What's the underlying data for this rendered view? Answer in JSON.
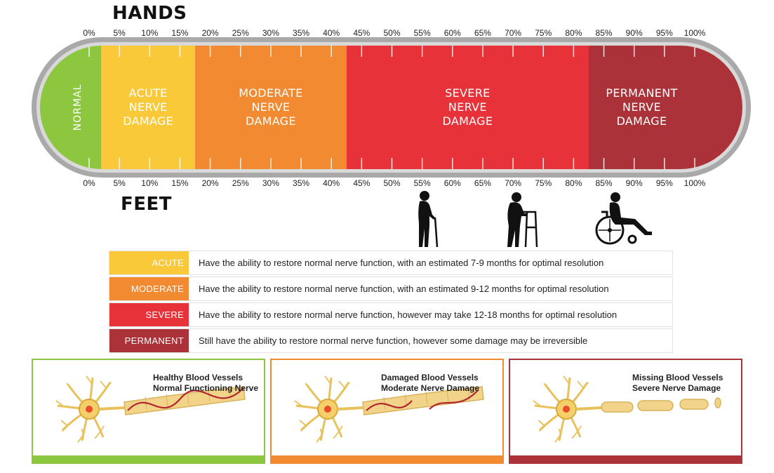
{
  "headings": {
    "hands": "HANDS",
    "feet": "FEET"
  },
  "scale": {
    "ticks": [
      0,
      5,
      10,
      15,
      20,
      25,
      30,
      35,
      40,
      45,
      50,
      55,
      60,
      65,
      70,
      75,
      80,
      85,
      90,
      95,
      100
    ],
    "tick_labels": [
      "0%",
      "5%",
      "10%",
      "15%",
      "20%",
      "25%",
      "30%",
      "35%",
      "40%",
      "45%",
      "50%",
      "55%",
      "60%",
      "65%",
      "70%",
      "75%",
      "80%",
      "85%",
      "90%",
      "95%",
      "100%"
    ]
  },
  "segments": [
    {
      "name": "normal",
      "label": "NORMAL",
      "start": 0,
      "end": 2,
      "color": "#8dc63f"
    },
    {
      "name": "acute",
      "label_lines": [
        "ACUTE",
        "NERVE",
        "DAMAGE"
      ],
      "start": 2,
      "end": 17.5,
      "color": "#f9c93a"
    },
    {
      "name": "moderate",
      "label_lines": [
        "MODERATE",
        "NERVE",
        "DAMAGE"
      ],
      "start": 17.5,
      "end": 42.5,
      "color": "#f28a31"
    },
    {
      "name": "severe",
      "label_lines": [
        "SEVERE",
        "NERVE",
        "DAMAGE"
      ],
      "start": 42.5,
      "end": 82.5,
      "color": "#e63238"
    },
    {
      "name": "permanent",
      "label_lines": [
        "PERMANENT",
        "NERVE",
        "DAMAGE"
      ],
      "start": 82.5,
      "end": 100,
      "color": "#aa3238"
    }
  ],
  "figures": [
    {
      "name": "elderly-with-cane-icon"
    },
    {
      "name": "elderly-with-walker-icon"
    },
    {
      "name": "wheelchair-user-icon"
    }
  ],
  "legend": [
    {
      "key": "ACUTE",
      "color": "#f9c93a",
      "text": "Have the ability to restore normal nerve function, with an estimated 7-9 months for optimal resolution"
    },
    {
      "key": "MODERATE",
      "color": "#f28a31",
      "text": "Have the ability to restore normal nerve function, with an estimated 9-12 months for optimal resolution"
    },
    {
      "key": "SEVERE",
      "color": "#e63238",
      "text": "Have the ability to restore normal nerve function, however may take 12-18 months for optimal resolution"
    },
    {
      "key": "PERMANENT",
      "color": "#aa3238",
      "text": "Still have the ability to restore normal nerve function, however some damage may be irreversible"
    }
  ],
  "panels": [
    {
      "line1": "Healthy Blood Vessels",
      "line2": "Normal Functioning Nerve",
      "color": "#8dc63f",
      "nerve_state": "healthy"
    },
    {
      "line1": "Damaged Blood Vessels",
      "line2": "Moderate Nerve Damage",
      "color": "#f28a31",
      "nerve_state": "damaged"
    },
    {
      "line1": "Missing Blood Vessels",
      "line2": "Severe Nerve Damage",
      "color": "#aa3238",
      "nerve_state": "broken"
    }
  ]
}
